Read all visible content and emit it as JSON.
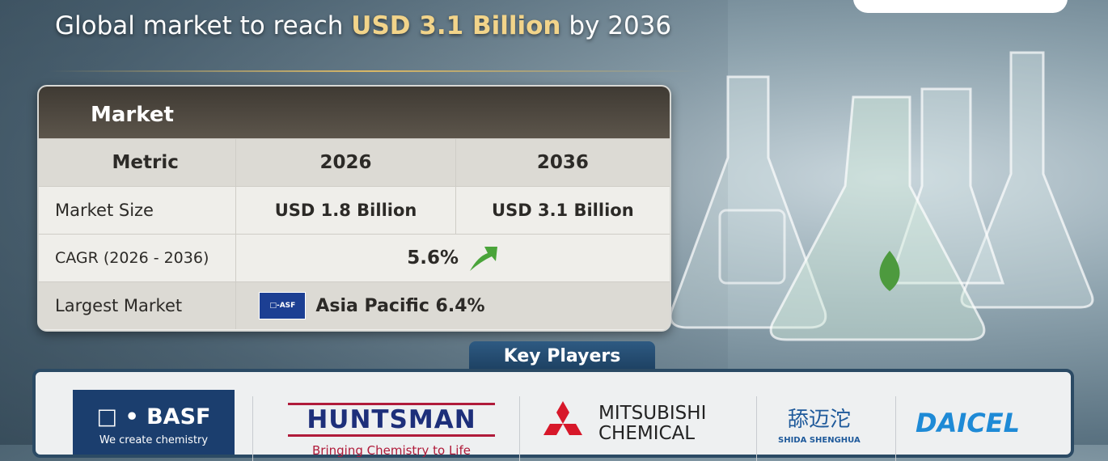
{
  "header": {
    "title_prefix": "Global market to reach ",
    "title_highlight": "USD 3.1 Billion",
    "title_suffix": " by 2036"
  },
  "table": {
    "title": "Market",
    "columns": [
      "Metric",
      "2026",
      "2036"
    ],
    "market_size": {
      "label": "Market Size",
      "v2026": "USD 1.8 Billion",
      "v2036": "USD 3.1 Billion"
    },
    "cagr": {
      "label": "CAGR (2026 - 2036)",
      "value": "5.6%",
      "icon": "arrow-up-right-icon",
      "icon_color": "#4aa43a"
    },
    "largest": {
      "label": "Largest Market",
      "logo_text": "□-ASF",
      "value": "Asia Pacific 6.4%"
    }
  },
  "key_players": {
    "title": "Key Players",
    "players": [
      {
        "name": "□ • BASF",
        "tagline": "We create chemistry"
      },
      {
        "name": "HUNTSMAN",
        "tagline": "Bringing Chemistry to Life"
      },
      {
        "name": "MITSUBISHI",
        "name2": "CHEMICAL"
      },
      {
        "name": "舔迈沱",
        "tagline": "SHIDA SHENGHUA"
      },
      {
        "name": "DAICEL"
      }
    ]
  },
  "colors": {
    "accent_gold": "#f2d48a",
    "table_header": "#4a443b",
    "key_players_tab": "#25496c"
  }
}
